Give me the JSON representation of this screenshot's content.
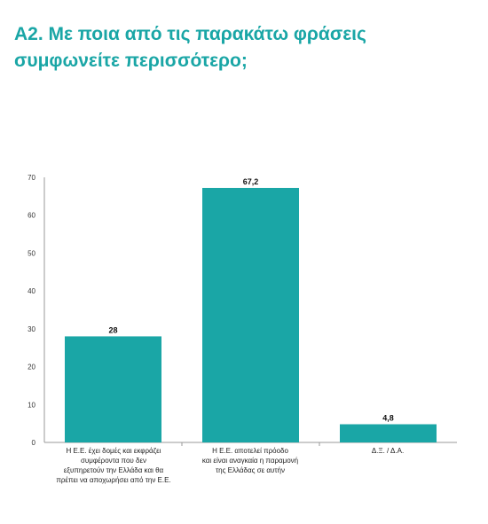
{
  "title_line1": "Α2. Με ποια από τις παρακάτω φράσεις",
  "title_line2": "συμφωνείτε περισσότερο;",
  "colors": {
    "title": "#1aa6a6",
    "bar": "#1aa6a6",
    "axis": "#999999"
  },
  "chart_data": {
    "type": "bar",
    "categories": [
      "Η Ε.Ε. έχει δομές και εκφράζει\nσυμφέροντα που δεν\nεξυπηρετούν την Ελλάδα και θα\nπρέπει να αποχωρήσει από την Ε.Ε.",
      "Η Ε.Ε. αποτελεί πρόοδο\nκαι είναι αναγκαία η παραμονή\nτης Ελλάδας σε αυτήν",
      "Δ.Ξ. / Δ.Α."
    ],
    "values": [
      28,
      67.2,
      4.8
    ],
    "data_labels": [
      "28",
      "67,2",
      "4,8"
    ],
    "ylim": [
      0,
      70
    ],
    "yticks": [
      0,
      10,
      20,
      30,
      40,
      50,
      60,
      70
    ],
    "grid": false
  }
}
